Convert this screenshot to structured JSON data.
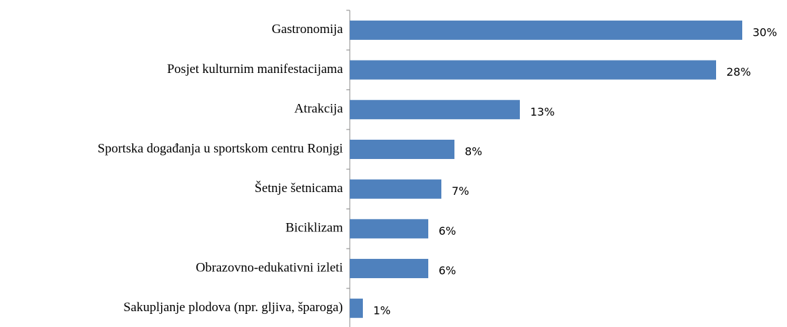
{
  "chart_data": {
    "type": "bar",
    "orientation": "horizontal",
    "categories": [
      "Gastronomija",
      "Posjet kulturnim manifestacijama",
      "Atrakcija",
      "Sportska događanja u sportskom centru Ronjgi",
      "Šetnje šetnicama",
      "Biciklizam",
      "Obrazovno-edukativni izleti",
      "Sakupljanje plodova (npr. gljiva, šparoga)"
    ],
    "values": [
      30,
      28,
      13,
      8,
      7,
      6,
      6,
      1
    ],
    "value_labels": [
      "30%",
      "28%",
      "13%",
      "8%",
      "7%",
      "6%",
      "6%",
      "1%"
    ],
    "color": "#4f81bd"
  }
}
